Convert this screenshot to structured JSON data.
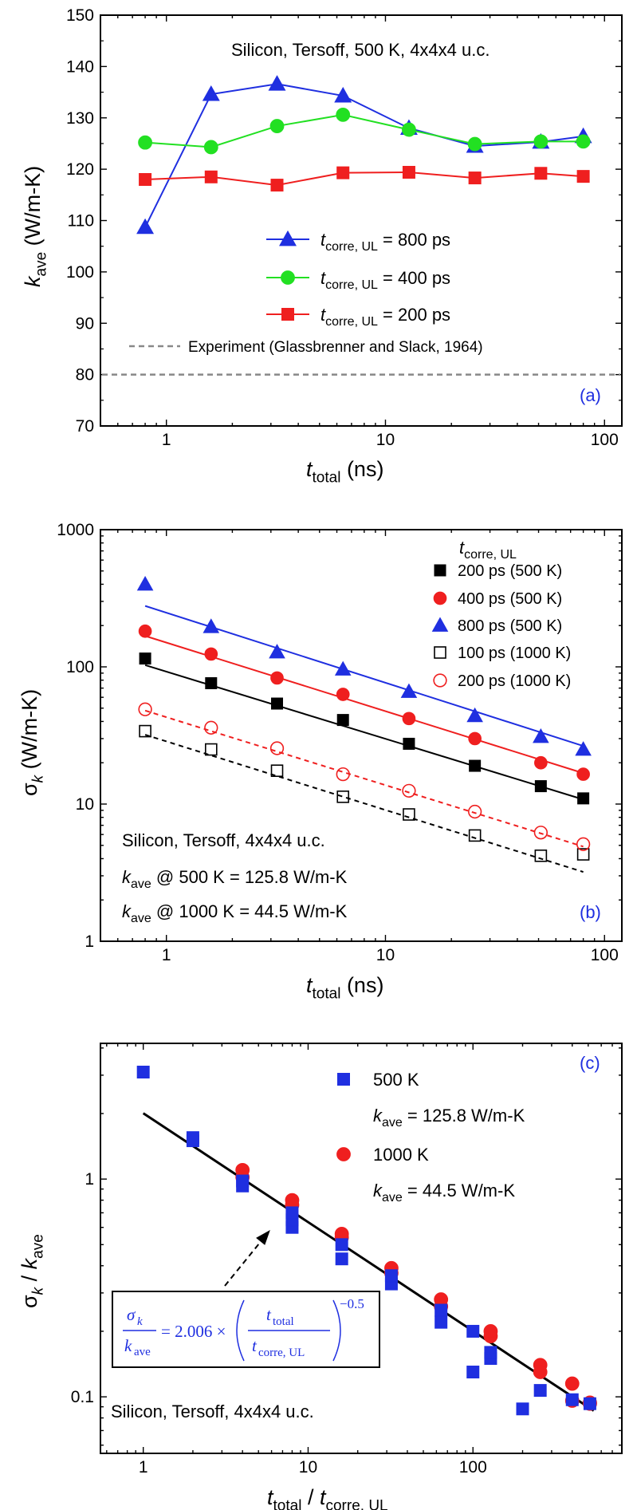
{
  "chart_data": [
    {
      "type": "line",
      "panel": "(a)",
      "annotation": "Silicon, Tersoff, 500 K, 4x4x4 u.c.",
      "xlabel": {
        "main": "t",
        "sub": "total",
        "unit": "(ns)"
      },
      "ylabel": {
        "main": "k",
        "sub": "ave",
        "unit": "(W/m-K)"
      },
      "xscale": "log",
      "xlim": [
        0.5,
        120
      ],
      "yscale": "linear",
      "ylim": [
        70,
        150
      ],
      "xticks": [
        1,
        10,
        100
      ],
      "xtick_labels": [
        "1",
        "10",
        "100"
      ],
      "yticks": [
        70,
        80,
        90,
        100,
        110,
        120,
        130,
        140,
        150
      ],
      "ytick_labels": [
        "70",
        "80",
        "90",
        "100",
        "110",
        "120",
        "130",
        "140",
        "150"
      ],
      "x": [
        0.8,
        1.6,
        3.2,
        6.4,
        12.8,
        25.6,
        51.2,
        80
      ],
      "series": [
        {
          "name": "t_corre,UL = 800 ps",
          "label_main": "t",
          "label_sub": "corre, UL",
          "label_rest": "= 800 ps",
          "color": "#1f2fe0",
          "marker": "triangle",
          "values": [
            108.7,
            134.6,
            136.6,
            134.3,
            128.0,
            124.5,
            125.3,
            126.4
          ]
        },
        {
          "name": "t_corre,UL = 400 ps",
          "label_main": "t",
          "label_sub": "corre, UL",
          "label_rest": "= 400 ps",
          "color": "#22e022",
          "marker": "circle",
          "values": [
            125.2,
            124.3,
            128.4,
            130.6,
            127.7,
            124.9,
            125.4,
            125.4
          ]
        },
        {
          "name": "t_corre,UL = 200 ps",
          "label_main": "t",
          "label_sub": "corre, UL",
          "label_rest": "= 200 ps",
          "color": "#ef1f1f",
          "marker": "square",
          "values": [
            118.0,
            118.5,
            116.9,
            119.3,
            119.4,
            118.3,
            119.2,
            118.6
          ]
        }
      ],
      "reference_line": {
        "label": "Experiment (Glassbrenner and Slack, 1964)",
        "value": 80,
        "color": "#888888"
      },
      "legend_position": "center"
    },
    {
      "type": "scatter",
      "panel": "(b)",
      "annotation_lines": [
        {
          "text": "Silicon, Tersoff, 4x4x4 u.c."
        },
        {
          "main": "k",
          "sub": "ave",
          "rest": "@ 500 K = 125.8 W/m-K"
        },
        {
          "main": "k",
          "sub": "ave",
          "rest": "@ 1000 K = 44.5 W/m-K"
        }
      ],
      "legend_title": {
        "main": "t",
        "sub": "corre, UL"
      },
      "xlabel": {
        "main": "t",
        "sub": "total",
        "unit": "(ns)"
      },
      "ylabel": {
        "main": "σ",
        "sub": "k",
        "unit": "(W/m-K)"
      },
      "xscale": "log",
      "xlim": [
        0.5,
        120
      ],
      "yscale": "log",
      "ylim": [
        1,
        1000
      ],
      "xticks": [
        1,
        10,
        100
      ],
      "xtick_labels": [
        "1",
        "10",
        "100"
      ],
      "yticks": [
        1,
        10,
        100,
        1000
      ],
      "ytick_labels": [
        "1",
        "10",
        "100",
        "1000"
      ],
      "x": [
        0.8,
        1.6,
        3.2,
        6.4,
        12.8,
        25.6,
        51.2,
        80
      ],
      "series": [
        {
          "name": "200 ps (500 K)",
          "color": "#000000",
          "marker": "square",
          "filled": true,
          "dash": false,
          "values": [
            115,
            76,
            54,
            41,
            27.5,
            19,
            13.5,
            11
          ],
          "fit": [
            0.8,
            103,
            80,
            10.8
          ]
        },
        {
          "name": "400 ps (500 K)",
          "color": "#ef1f1f",
          "marker": "circle",
          "filled": true,
          "dash": false,
          "values": [
            182,
            124,
            83,
            63,
            42,
            30,
            20,
            16.5
          ],
          "fit": [
            0.8,
            168,
            80,
            16.8
          ]
        },
        {
          "name": "800 ps (500 K)",
          "color": "#1f2fe0",
          "marker": "triangle",
          "filled": true,
          "dash": false,
          "values": [
            400,
            196,
            128,
            96,
            66,
            44,
            31,
            25
          ],
          "fit": [
            0.8,
            278,
            80,
            26.5
          ]
        },
        {
          "name": "100 ps (1000 K)",
          "color": "#000000",
          "marker": "square",
          "filled": false,
          "dash": true,
          "values": [
            34,
            25,
            17.5,
            11.3,
            8.4,
            5.9,
            4.2,
            4.3
          ],
          "fit": [
            0.8,
            32,
            80,
            3.2
          ]
        },
        {
          "name": "200 ps (1000 K)",
          "color": "#ef1f1f",
          "marker": "circle",
          "filled": false,
          "dash": true,
          "values": [
            49,
            36,
            25.5,
            16.5,
            12.5,
            8.8,
            6.2,
            5.1
          ],
          "fit": [
            0.8,
            48,
            80,
            4.9
          ]
        }
      ],
      "legend_position": "top-right"
    },
    {
      "type": "scatter",
      "panel": "(c)",
      "annotation": "Silicon, Tersoff, 4x4x4 u.c.",
      "xlabel": {
        "main": "t",
        "sub": "total",
        "sep": " / ",
        "main2": "t",
        "sub2": "corre, UL"
      },
      "ylabel": {
        "main": "σ",
        "sub": "k",
        "sep": " / ",
        "main2": "k",
        "sub2": "ave"
      },
      "xscale": "log",
      "xlim": [
        0.55,
        800
      ],
      "yscale": "log",
      "ylim": [
        0.055,
        4.2
      ],
      "xticks": [
        1,
        10,
        100
      ],
      "xtick_labels": [
        "1",
        "10",
        "100"
      ],
      "yticks": [
        0.1,
        1
      ],
      "ytick_labels": [
        "0.1",
        "1"
      ],
      "series": [
        {
          "name": "500 K",
          "extra": {
            "main": "k",
            "sub": "ave",
            "rest": "= 125.8 W/m-K"
          },
          "color": "#1f2fe0",
          "marker": "square",
          "x": [
            1,
            2,
            2,
            4,
            4,
            8,
            8,
            8,
            16,
            16,
            32,
            32,
            64,
            64,
            100,
            100,
            128,
            128,
            200,
            256,
            400,
            512
          ],
          "y": [
            3.1,
            1.5,
            1.55,
            0.93,
            0.98,
            0.6,
            0.65,
            0.7,
            0.43,
            0.5,
            0.33,
            0.36,
            0.22,
            0.25,
            0.2,
            0.13,
            0.15,
            0.16,
            0.088,
            0.107,
            0.097,
            0.093
          ]
        },
        {
          "name": "1000 K",
          "extra": {
            "main": "k",
            "sub": "ave",
            "rest": "= 44.5 W/m-K"
          },
          "color": "#ef1f1f",
          "marker": "circle",
          "x": [
            4,
            4,
            8,
            8,
            16,
            16,
            32,
            32,
            64,
            64,
            128,
            128,
            256,
            256,
            400,
            400,
            512,
            512
          ],
          "y": [
            1.1,
            1.02,
            0.8,
            0.76,
            0.56,
            0.54,
            0.39,
            0.37,
            0.28,
            0.26,
            0.19,
            0.2,
            0.14,
            0.13,
            0.115,
            0.096,
            0.094,
            0.093
          ]
        }
      ],
      "fit": {
        "coefficient": 2.006,
        "exponent": -0.5,
        "x_range": [
          1,
          540
        ],
        "color": "#000000"
      },
      "equation": {
        "lhs_num": "σ",
        "lhs_num_sub": "k",
        "lhs_den": "k",
        "lhs_den_sub": "ave",
        "eq": "= 2.006 ×",
        "frac_num": "t",
        "frac_num_sub": "total",
        "frac_den": "t",
        "frac_den_sub": "corre, UL",
        "exp": "−0.5"
      },
      "legend_position": "top-right"
    }
  ],
  "colors": {
    "panel_label": "#1f2fe0",
    "equation": "#1f2fe0"
  }
}
